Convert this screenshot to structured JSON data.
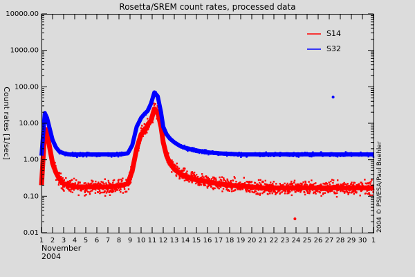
{
  "chart_data": {
    "type": "scatter",
    "title": "Rosetta/SREM count rates, processed data",
    "ylabel": "Count rates [1/sec]",
    "xlabel_line1": "November",
    "xlabel_line2": "2004",
    "credit": "2004 © PSI/ESA/Paul Buehler",
    "yscale": "log",
    "ylim": [
      0.01,
      10000
    ],
    "xlim": [
      1,
      31
    ],
    "y_tick_labels": [
      "0.01",
      "0.10",
      "1.00",
      "10.00",
      "100.00",
      "1000.00",
      "10000.00"
    ],
    "y_tick_values": [
      0.01,
      0.1,
      1,
      10,
      100,
      1000,
      10000
    ],
    "x_tick_labels": [
      "1",
      "2",
      "3",
      "4",
      "5",
      "6",
      "7",
      "8",
      "9",
      "10",
      "11",
      "12",
      "13",
      "14",
      "15",
      "16",
      "17",
      "18",
      "19",
      "20",
      "21",
      "22",
      "23",
      "24",
      "25",
      "26",
      "27",
      "28",
      "29",
      "30",
      "1"
    ],
    "x_tick_values": [
      1,
      2,
      3,
      4,
      5,
      6,
      7,
      8,
      9,
      10,
      11,
      12,
      13,
      14,
      15,
      16,
      17,
      18,
      19,
      20,
      21,
      22,
      23,
      24,
      25,
      26,
      27,
      28,
      29,
      30,
      31
    ],
    "legend_position": "top-right",
    "colors": {
      "S14": "#ff0000",
      "S32": "#0000ff"
    },
    "series": [
      {
        "name": "S14",
        "x": [
          1.0,
          1.3,
          1.5,
          1.7,
          2.0,
          2.3,
          2.6,
          3.0,
          3.5,
          4,
          5,
          6,
          7,
          8,
          8.8,
          9.2,
          9.6,
          10.0,
          10.3,
          10.6,
          10.9,
          11.2,
          11.5,
          11.8,
          12.0,
          12.3,
          12.6,
          13,
          13.5,
          14,
          15,
          16,
          17,
          18,
          19,
          20,
          21,
          22,
          23,
          24,
          25,
          25.9,
          26.5,
          27,
          28,
          29,
          30,
          31
        ],
        "values": [
          0.2,
          7,
          5,
          2.5,
          0.8,
          0.45,
          0.3,
          0.22,
          0.2,
          0.18,
          0.18,
          0.18,
          0.18,
          0.19,
          0.22,
          0.5,
          2,
          5,
          6,
          9,
          12,
          25,
          20,
          8,
          3,
          1.3,
          0.8,
          0.55,
          0.42,
          0.35,
          0.28,
          0.25,
          0.22,
          0.2,
          0.19,
          0.18,
          0.17,
          0.17,
          0.17,
          0.17,
          0.17,
          0.17,
          0.17,
          0.17,
          0.17,
          0.17,
          0.17,
          0.17
        ]
      },
      {
        "name": "S32",
        "x": [
          1.0,
          1.3,
          1.5,
          1.7,
          2.0,
          2.3,
          2.6,
          3.0,
          3.5,
          4,
          5,
          6,
          7,
          8,
          8.8,
          9.2,
          9.6,
          10.0,
          10.3,
          10.6,
          10.9,
          11.2,
          11.5,
          11.8,
          12.0,
          12.3,
          12.6,
          13,
          13.5,
          14,
          15,
          16,
          17,
          18,
          19,
          20,
          21,
          22,
          23,
          24,
          25,
          25.9,
          26.5,
          27,
          28,
          29,
          30,
          31
        ],
        "values": [
          1.3,
          19,
          14,
          8,
          3.5,
          2.2,
          1.7,
          1.5,
          1.4,
          1.4,
          1.4,
          1.4,
          1.4,
          1.4,
          1.5,
          2.5,
          8,
          14,
          18,
          22,
          35,
          70,
          55,
          20,
          8,
          5,
          3.8,
          3,
          2.4,
          2.1,
          1.8,
          1.6,
          1.5,
          1.45,
          1.4,
          1.4,
          1.4,
          1.4,
          1.4,
          1.4,
          1.4,
          1.4,
          1.4,
          1.4,
          1.4,
          1.4,
          1.4,
          1.4
        ]
      }
    ],
    "outliers": [
      {
        "series": "S32",
        "x": 27.35,
        "value": 52
      },
      {
        "series": "S14",
        "x": 23.9,
        "value": 0.024
      }
    ]
  }
}
